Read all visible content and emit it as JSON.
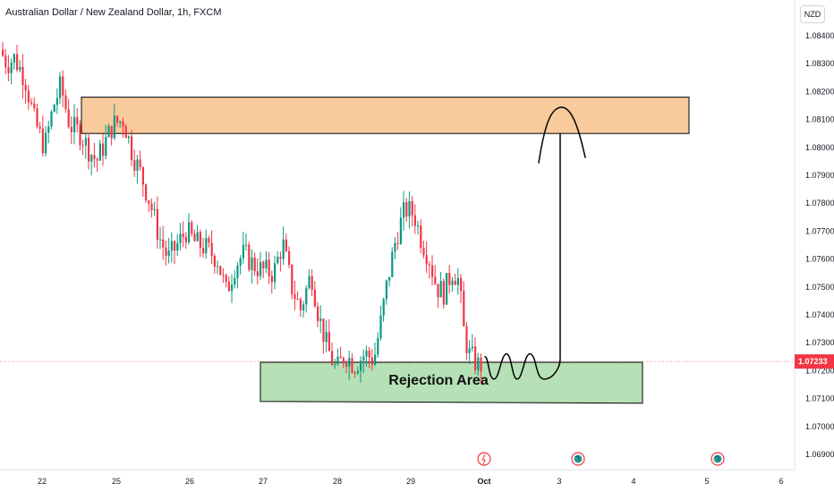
{
  "header": {
    "title": "Australian Dollar / New Zealand Dollar, 1h, FXCM",
    "currency": "NZD"
  },
  "chart_data": {
    "type": "candlestick",
    "symbol": "AUDNZD",
    "timeframe": "1h",
    "ylim": [
      1.0685,
      1.0855
    ],
    "y_ticks": [
      "1.08400",
      "1.08300",
      "1.08200",
      "1.08100",
      "1.08000",
      "1.07900",
      "1.07800",
      "1.07700",
      "1.07600",
      "1.07500",
      "1.07400",
      "1.07300",
      "1.07200",
      "1.07100",
      "1.07000",
      "1.06900"
    ],
    "x_ticks": [
      "22",
      "25",
      "26",
      "27",
      "28",
      "29",
      "Oct",
      "3",
      "4",
      "5",
      "6"
    ],
    "current_price": "1.07233",
    "colors": {
      "up": "#089981",
      "down": "#f23645",
      "current": "#f23645"
    },
    "zones": [
      {
        "name": "supply",
        "label": "",
        "from": 1.0805,
        "to": 1.0818,
        "color": "#f9cb9c"
      },
      {
        "name": "rejection",
        "label": "Rejection Area",
        "from": 1.0709,
        "to": 1.0723,
        "color": "#b6e0b6"
      }
    ],
    "path_points": [
      1.0725,
      1.0717,
      1.0726,
      1.0717,
      1.0726,
      1.0717,
      1.0721,
      1.0813,
      1.0805
    ],
    "events": [
      "flash-icon",
      "globe-icon",
      "globe-icon"
    ]
  }
}
